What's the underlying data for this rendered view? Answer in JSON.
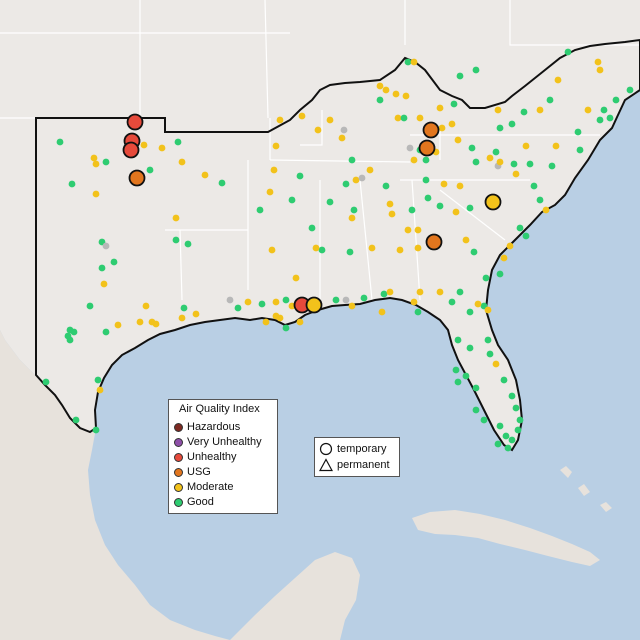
{
  "colors": {
    "water": "#b9cfe4",
    "land": "#ece9e6",
    "land_south": "#e7e2dc",
    "state_border": "#ffffff",
    "region_outline": "#111111",
    "stroke": "#222222"
  },
  "legend": {
    "title": "Air Quality Index",
    "items": [
      {
        "label": "Hazardous",
        "color": "#7e2a22"
      },
      {
        "label": "Very Unhealthy",
        "color": "#8e4fa8"
      },
      {
        "label": "Unhealthy",
        "color": "#e64a3b"
      },
      {
        "label": "USG",
        "color": "#e2761e"
      },
      {
        "label": "Moderate",
        "color": "#f2c21b"
      },
      {
        "label": "Good",
        "color": "#2ecc71"
      }
    ]
  },
  "monitor_types": {
    "temporary": {
      "label": "temporary",
      "shape": "circle-icon"
    },
    "permanent": {
      "label": "permanent",
      "shape": "triangle-icon"
    }
  },
  "aqi_colors": {
    "good": "#2ecc71",
    "moderate": "#f2c21b",
    "usg": "#e2761e",
    "unhealthy": "#e64a3b",
    "nodata": "#b8b8b8"
  }
}
